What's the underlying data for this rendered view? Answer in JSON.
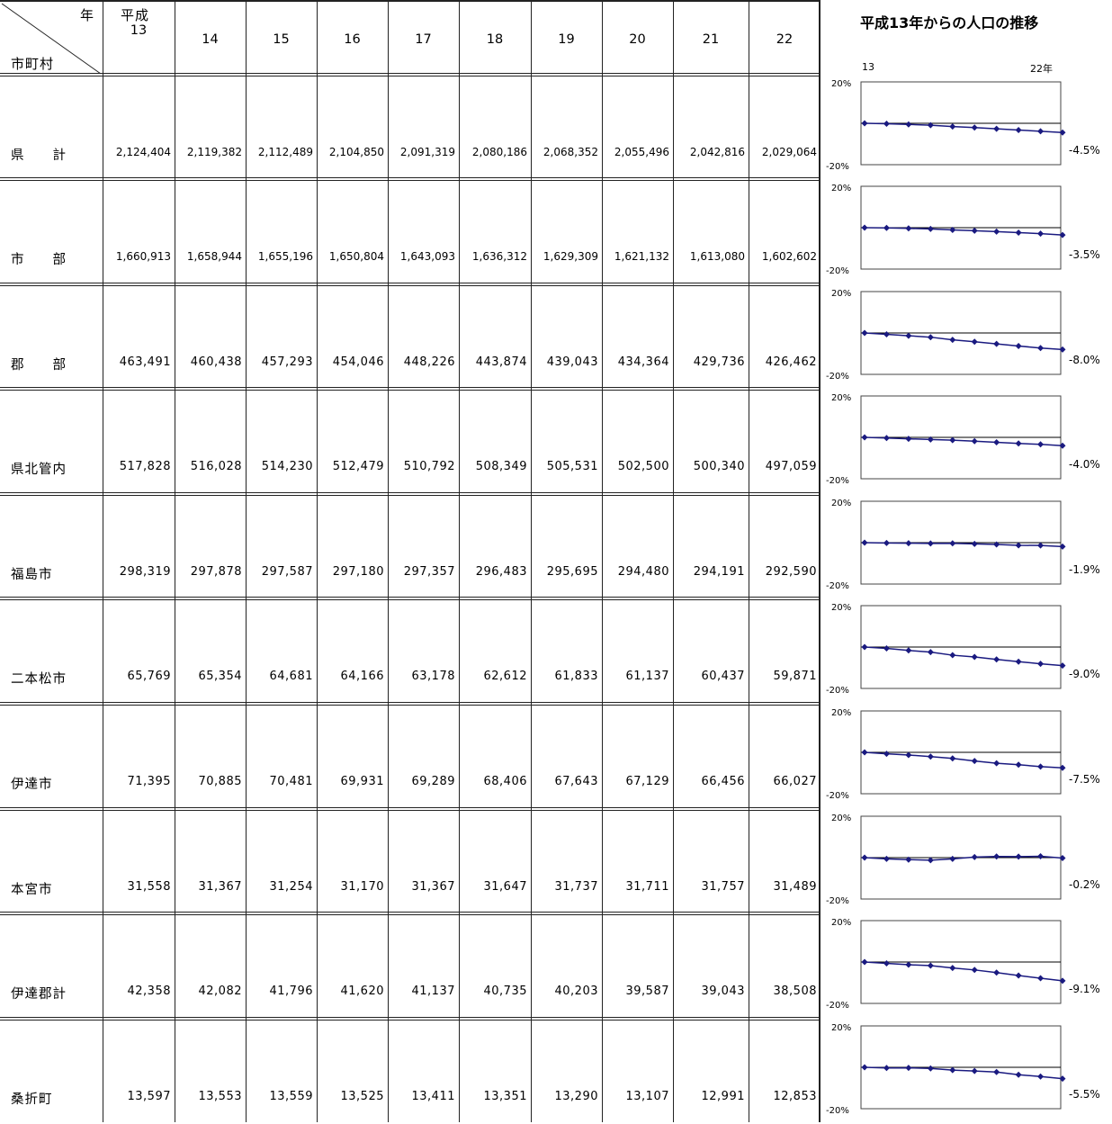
{
  "header": {
    "year_label": "年",
    "region_label": "市町村",
    "era": "平成",
    "years": [
      "13",
      "14",
      "15",
      "16",
      "17",
      "18",
      "19",
      "20",
      "21",
      "22"
    ]
  },
  "rows": [
    {
      "name": "県　　計",
      "values": [
        "2,124,404",
        "2,119,382",
        "2,112,489",
        "2,104,850",
        "2,091,319",
        "2,080,186",
        "2,068,352",
        "2,055,496",
        "2,042,816",
        "2,029,064"
      ],
      "change": "-4.5%"
    },
    {
      "name": "市　　部",
      "values": [
        "1,660,913",
        "1,658,944",
        "1,655,196",
        "1,650,804",
        "1,643,093",
        "1,636,312",
        "1,629,309",
        "1,621,132",
        "1,613,080",
        "1,602,602"
      ],
      "change": "-3.5%"
    },
    {
      "name": "郡　　部",
      "values": [
        "463,491",
        "460,438",
        "457,293",
        "454,046",
        "448,226",
        "443,874",
        "439,043",
        "434,364",
        "429,736",
        "426,462"
      ],
      "change": "-8.0%"
    },
    {
      "name": "県北管内",
      "values": [
        "517,828",
        "516,028",
        "514,230",
        "512,479",
        "510,792",
        "508,349",
        "505,531",
        "502,500",
        "500,340",
        "497,059"
      ],
      "change": "-4.0%"
    },
    {
      "name": "福島市",
      "values": [
        "298,319",
        "297,878",
        "297,587",
        "297,180",
        "297,357",
        "296,483",
        "295,695",
        "294,480",
        "294,191",
        "292,590"
      ],
      "change": "-1.9%"
    },
    {
      "name": "二本松市",
      "values": [
        "65,769",
        "65,354",
        "64,681",
        "64,166",
        "63,178",
        "62,612",
        "61,833",
        "61,137",
        "60,437",
        "59,871"
      ],
      "change": "-9.0%"
    },
    {
      "name": "伊達市",
      "values": [
        "71,395",
        "70,885",
        "70,481",
        "69,931",
        "69,289",
        "68,406",
        "67,643",
        "67,129",
        "66,456",
        "66,027"
      ],
      "change": "-7.5%"
    },
    {
      "name": "本宮市",
      "values": [
        "31,558",
        "31,367",
        "31,254",
        "31,170",
        "31,367",
        "31,647",
        "31,737",
        "31,711",
        "31,757",
        "31,489"
      ],
      "change": "-0.2%"
    },
    {
      "name": "伊達郡計",
      "values": [
        "42,358",
        "42,082",
        "41,796",
        "41,620",
        "41,137",
        "40,735",
        "40,203",
        "39,587",
        "39,043",
        "38,508"
      ],
      "change": "-9.1%"
    },
    {
      "name": "桑折町",
      "values": [
        "13,597",
        "13,553",
        "13,559",
        "13,525",
        "13,411",
        "13,351",
        "13,290",
        "13,107",
        "12,991",
        "12,853"
      ],
      "change": "-5.5%"
    }
  ],
  "chart": {
    "title": "平成13年からの人口の推移",
    "x_start_label": "13",
    "x_end_label": "22年",
    "y_top_label": "20%",
    "y_bottom_label": "-20%"
  },
  "chart_data": {
    "type": "line",
    "title": "平成13年からの人口の推移",
    "x": [
      "13",
      "14",
      "15",
      "16",
      "17",
      "18",
      "19",
      "20",
      "21",
      "22"
    ],
    "ylim": [
      -20,
      20
    ],
    "ylabel": "",
    "xlabel": "",
    "line_color": "#1a1a80",
    "series": [
      {
        "name": "県　　計",
        "values": [
          0.0,
          -0.24,
          -0.56,
          -0.92,
          -1.56,
          -2.08,
          -2.64,
          -3.24,
          -3.84,
          -4.48
        ]
      },
      {
        "name": "市　　部",
        "values": [
          0.0,
          -0.12,
          -0.34,
          -0.61,
          -1.07,
          -1.48,
          -1.9,
          -2.39,
          -2.88,
          -3.51
        ]
      },
      {
        "name": "郡　　部",
        "values": [
          0.0,
          -0.66,
          -1.34,
          -2.04,
          -3.29,
          -4.23,
          -5.27,
          -6.28,
          -7.28,
          -7.99
        ]
      },
      {
        "name": "県北管内",
        "values": [
          0.0,
          -0.35,
          -0.69,
          -1.03,
          -1.36,
          -1.83,
          -2.37,
          -2.96,
          -3.38,
          -4.01
        ]
      },
      {
        "name": "福島市",
        "values": [
          0.0,
          -0.15,
          -0.25,
          -0.38,
          -0.32,
          -0.62,
          -0.88,
          -1.29,
          -1.38,
          -1.92
        ]
      },
      {
        "name": "二本松市",
        "values": [
          0.0,
          -0.63,
          -1.65,
          -2.44,
          -3.94,
          -4.8,
          -5.98,
          -7.04,
          -8.11,
          -8.97
        ]
      },
      {
        "name": "伊達市",
        "values": [
          0.0,
          -0.71,
          -1.28,
          -2.05,
          -2.95,
          -4.19,
          -5.26,
          -5.98,
          -6.92,
          -7.52
        ]
      },
      {
        "name": "本宮市",
        "values": [
          0.0,
          -0.61,
          -0.96,
          -1.23,
          -0.61,
          0.28,
          0.57,
          0.49,
          0.63,
          -0.22
        ]
      },
      {
        "name": "伊達郡計",
        "values": [
          0.0,
          -0.65,
          -1.33,
          -1.74,
          -2.88,
          -3.83,
          -5.09,
          -6.54,
          -7.83,
          -9.09
        ]
      },
      {
        "name": "桑折町",
        "values": [
          0.0,
          -0.32,
          -0.28,
          -0.53,
          -1.37,
          -1.81,
          -2.26,
          -3.6,
          -4.46,
          -5.47
        ]
      }
    ]
  }
}
